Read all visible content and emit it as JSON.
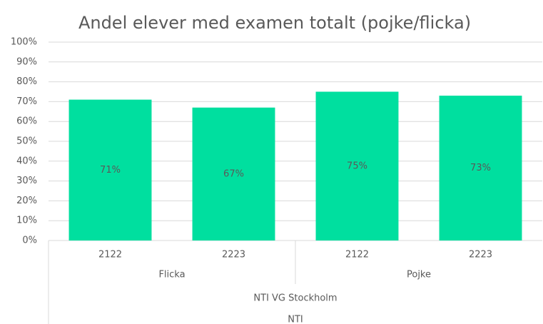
{
  "chart_data": {
    "type": "bar",
    "title": "Andel elever med examen totalt (pojke/flicka)",
    "categories": [
      "2122",
      "2223",
      "2122",
      "2223"
    ],
    "groups": [
      "Flicka",
      "Pojke"
    ],
    "levels": [
      "NTI VG Stockholm",
      "NTI"
    ],
    "values": [
      71,
      67,
      75,
      73
    ],
    "value_labels": [
      "71%",
      "67%",
      "75%",
      "73%"
    ],
    "color": "#00df9f",
    "ylim": [
      0,
      100
    ],
    "yticks": [
      {
        "value": 0,
        "label": "0%"
      },
      {
        "value": 10,
        "label": "10%"
      },
      {
        "value": 20,
        "label": "20%"
      },
      {
        "value": 30,
        "label": "30%"
      },
      {
        "value": 40,
        "label": "40%"
      },
      {
        "value": 50,
        "label": "50%"
      },
      {
        "value": 60,
        "label": "60%"
      },
      {
        "value": 70,
        "label": "70%"
      },
      {
        "value": 80,
        "label": "80%"
      },
      {
        "value": 90,
        "label": "90%"
      },
      {
        "value": 100,
        "label": "100%"
      }
    ],
    "grid": true
  }
}
